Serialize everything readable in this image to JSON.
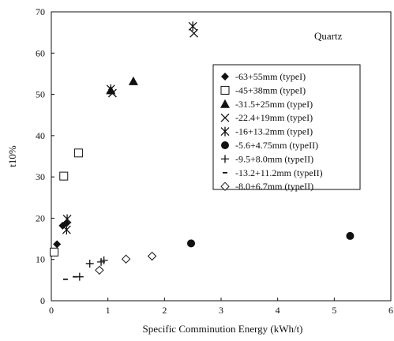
{
  "chart_data": {
    "type": "scatter",
    "title": "",
    "xlabel": "Specific Comminution Energy (kWh/t)",
    "ylabel": "t10%",
    "xlim": [
      0,
      6
    ],
    "ylim": [
      0,
      70
    ],
    "xticks": [
      "0",
      "1",
      "2",
      "3",
      "4",
      "5",
      "6"
    ],
    "yticks": [
      "0",
      "10",
      "20",
      "30",
      "40",
      "50",
      "60",
      "70"
    ],
    "grid": false,
    "legend_position": "right",
    "annotation": "Quartz",
    "series": [
      {
        "name": "-63+55mm (typeI)",
        "marker": "diamond-filled",
        "points": [
          [
            0.1,
            13.7
          ],
          [
            0.2,
            18.2
          ],
          [
            0.27,
            18.8
          ]
        ]
      },
      {
        "name": "-45+38mm (typeI)",
        "marker": "square-open",
        "points": [
          [
            0.05,
            11.8
          ],
          [
            0.22,
            30.2
          ],
          [
            0.48,
            35.8
          ]
        ]
      },
      {
        "name": "-31.5+25mm (typeI)",
        "marker": "triangle-filled",
        "points": [
          [
            1.05,
            51.0
          ],
          [
            1.45,
            53.2
          ]
        ]
      },
      {
        "name": "-22.4+19mm (typeI)",
        "marker": "x",
        "points": [
          [
            1.08,
            50.3
          ],
          [
            2.52,
            64.8
          ]
        ]
      },
      {
        "name": "-16+13.2mm (typeI)",
        "marker": "asterisk",
        "points": [
          [
            0.27,
            17.2
          ],
          [
            0.28,
            19.8
          ],
          [
            1.05,
            51.3
          ],
          [
            2.5,
            66.5
          ]
        ]
      },
      {
        "name": "-5.6+4.75mm (typeII)",
        "marker": "circle-filled",
        "points": [
          [
            2.47,
            13.9
          ],
          [
            5.28,
            15.7
          ]
        ]
      },
      {
        "name": "-9.5+8.0mm (typeII)",
        "marker": "plus",
        "points": [
          [
            0.5,
            5.8
          ],
          [
            0.68,
            9.0
          ],
          [
            0.88,
            9.4
          ],
          [
            0.93,
            9.8
          ]
        ]
      },
      {
        "name": "-13.2+11.2mm (typeII)",
        "marker": "dash",
        "points": [
          [
            0.25,
            5.2
          ],
          [
            0.42,
            5.8
          ]
        ]
      },
      {
        "name": "-8.0+6.7mm (typeII)",
        "marker": "diamond-open",
        "points": [
          [
            0.85,
            7.4
          ],
          [
            1.32,
            10.1
          ],
          [
            1.78,
            10.8
          ]
        ]
      }
    ]
  }
}
